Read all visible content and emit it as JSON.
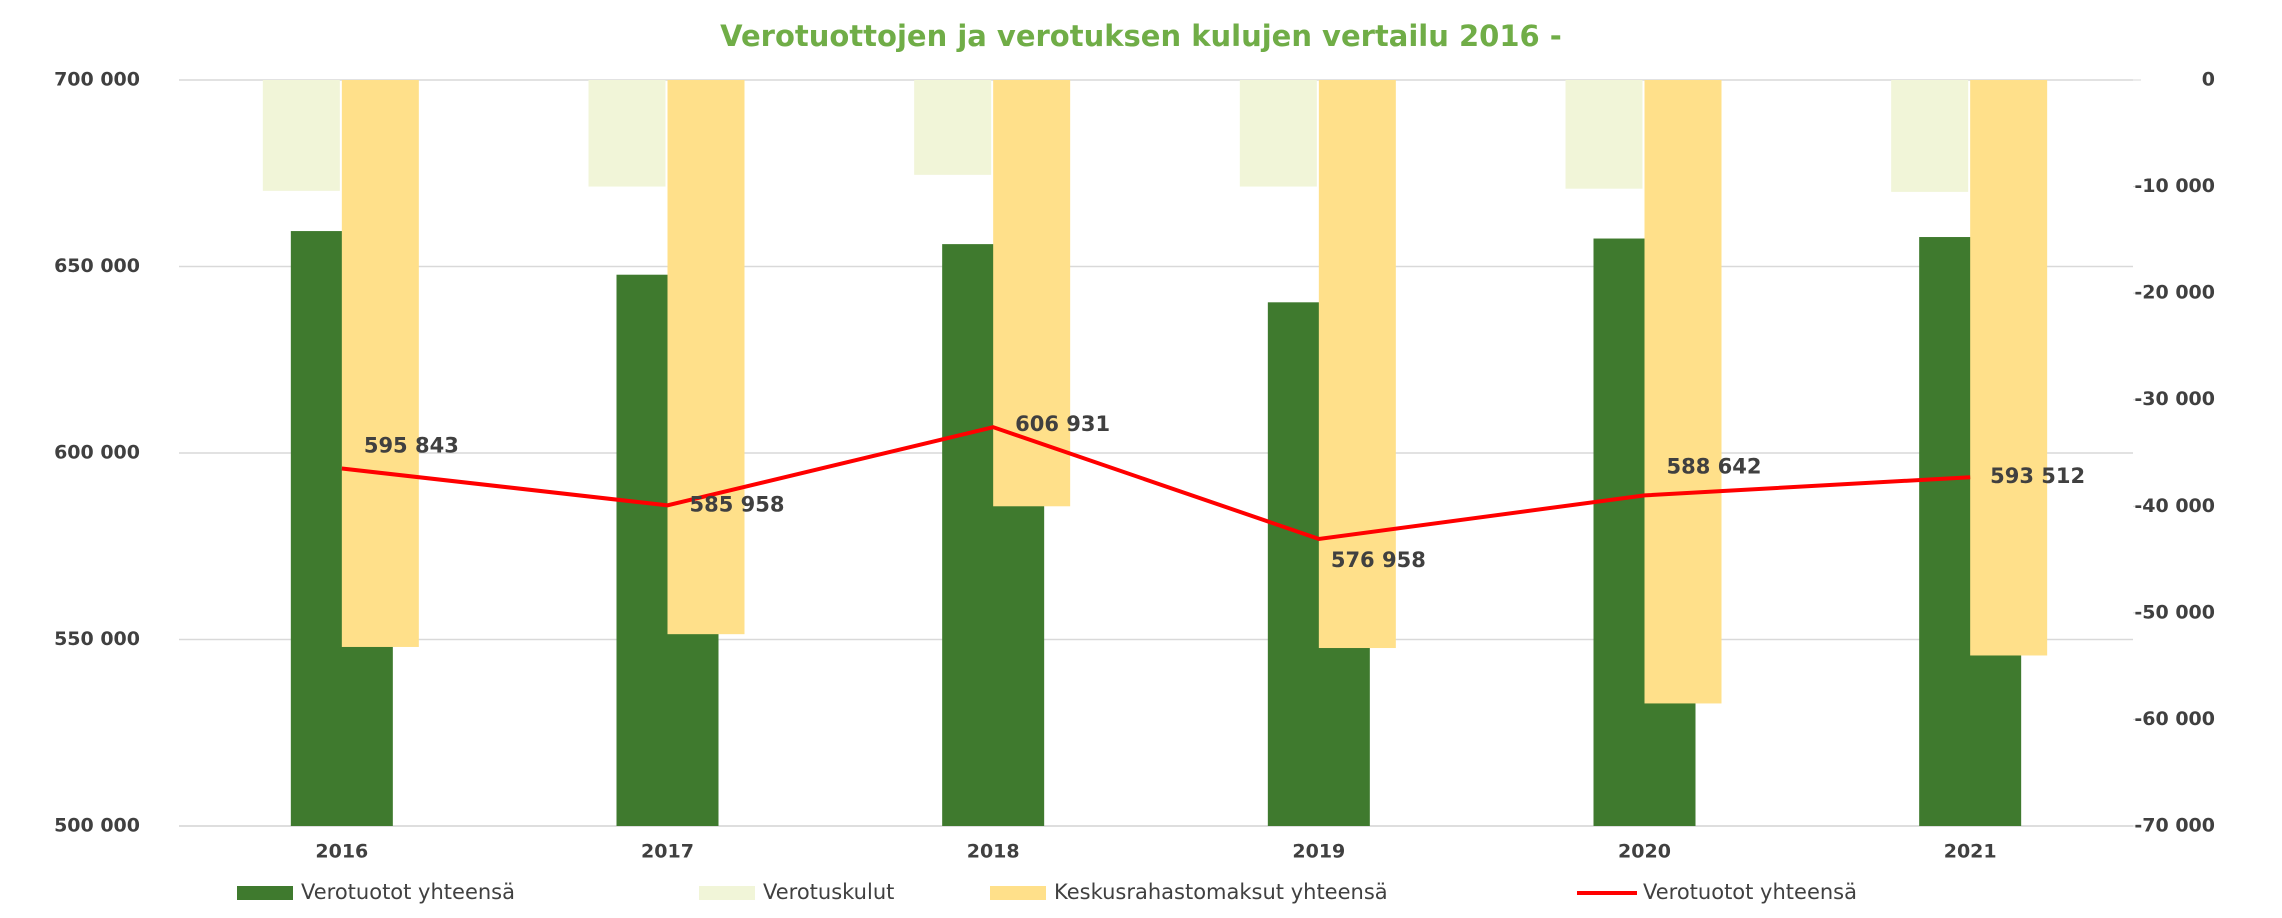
{
  "chart_data": {
    "type": "bar",
    "title": "Verotuottojen ja verotuksen kulujen vertailu 2016  -",
    "categories": [
      "2016",
      "2017",
      "2018",
      "2019",
      "2020",
      "2021"
    ],
    "series": [
      {
        "name": "Verotuotot yhteensä",
        "type": "bar",
        "color": "#3f7a2e",
        "axis": "y",
        "values": [
          659500,
          647800,
          656000,
          640400,
          657500,
          657900
        ]
      },
      {
        "name": "Verotuskulut",
        "type": "bar",
        "color": "#f1f5d8",
        "axis": "y2",
        "values": [
          -10400,
          -10000,
          -8900,
          -10000,
          -10200,
          -10500
        ]
      },
      {
        "name": "Keskusrahastomaksut yhteensä",
        "type": "bar",
        "color": "#ffe08a",
        "axis": "y2",
        "values": [
          -53200,
          -52000,
          -40000,
          -53300,
          -58500,
          -54000
        ]
      },
      {
        "name": "Verotuotot yhteensä",
        "type": "line",
        "color": "#ff0000",
        "axis": "y",
        "values": [
          595843,
          585958,
          606931,
          576958,
          588642,
          593512
        ],
        "value_labels": [
          "595 843",
          "585 958",
          "606 931",
          "576 958",
          "588 642",
          "593 512"
        ]
      }
    ],
    "ylim": [
      500000,
      700000
    ],
    "yticks": [
      {
        "value": 500000,
        "label": "500 000"
      },
      {
        "value": 550000,
        "label": "550 000"
      },
      {
        "value": 600000,
        "label": "600 000"
      },
      {
        "value": 650000,
        "label": "650 000"
      },
      {
        "value": 700000,
        "label": "700 000"
      }
    ],
    "y2lim": [
      -70000,
      0
    ],
    "y2ticks": [
      {
        "value": -70000,
        "label": "-70 000"
      },
      {
        "value": -60000,
        "label": "-60 000"
      },
      {
        "value": -50000,
        "label": "-50 000"
      },
      {
        "value": -40000,
        "label": "-40 000"
      },
      {
        "value": -30000,
        "label": "-30 000"
      },
      {
        "value": -20000,
        "label": "-20 000"
      },
      {
        "value": -10000,
        "label": "-10 000"
      },
      0
    ],
    "y2tick_color": "#ff0000",
    "grid": true,
    "legend": "bottom"
  }
}
